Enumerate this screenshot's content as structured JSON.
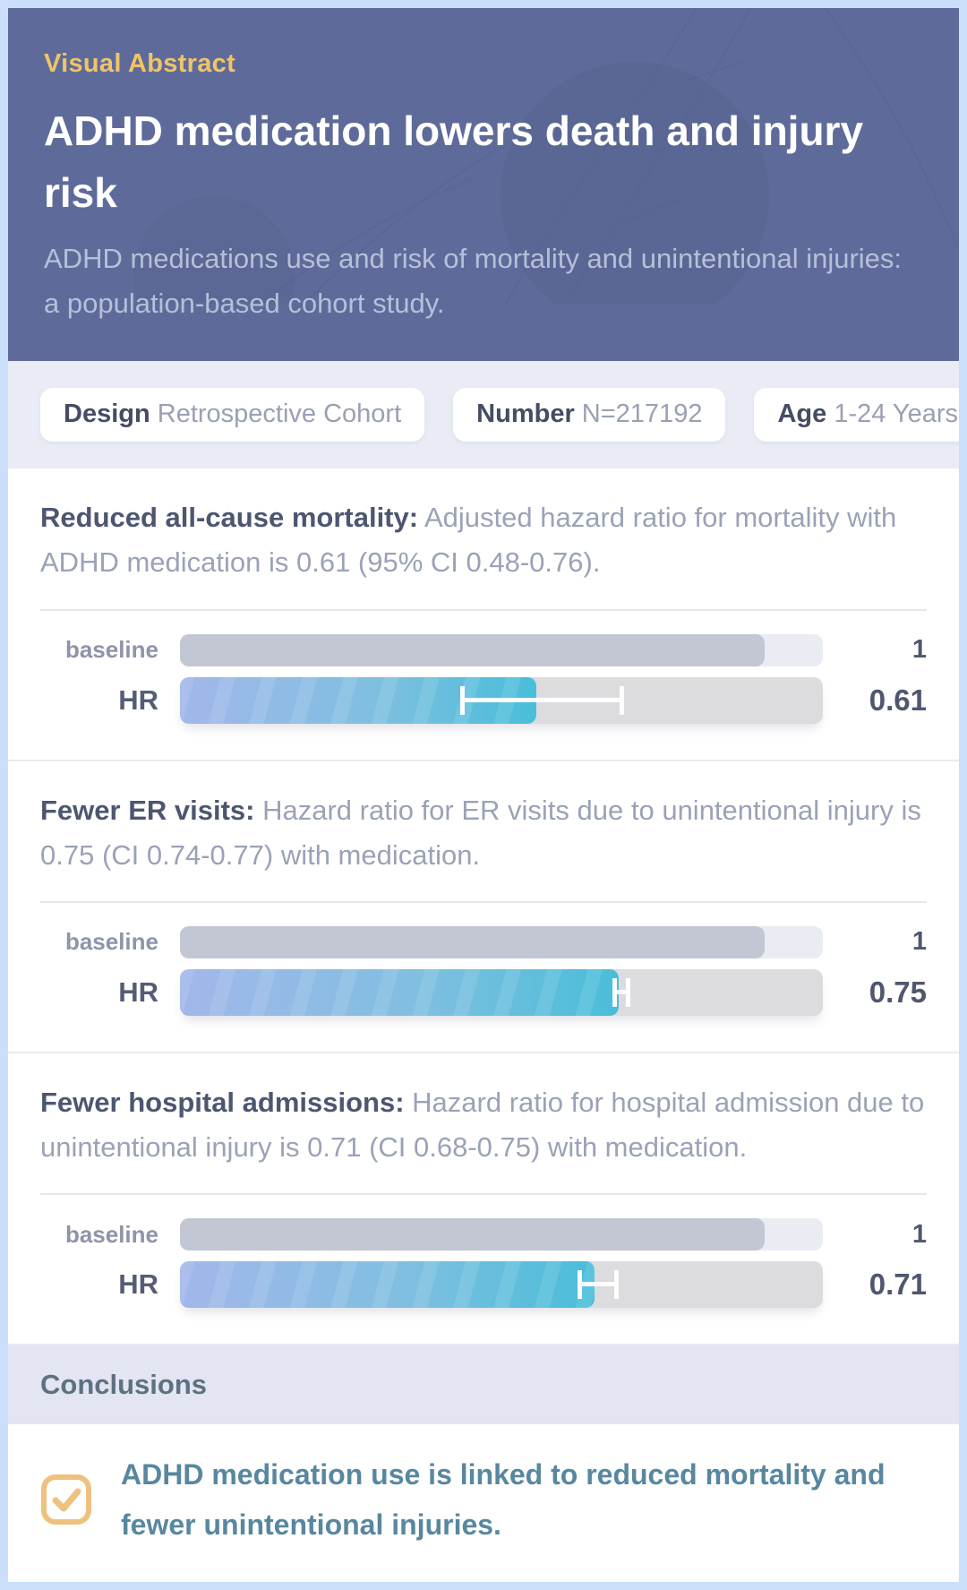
{
  "header": {
    "kicker": "Visual Abstract",
    "title": "ADHD medication lowers death and injury risk",
    "subtitle": "ADHD medications use and risk of mortality and unintentional injuries: a population-based cohort study."
  },
  "badges": [
    {
      "label": "Design",
      "value": "Retrospective Cohort"
    },
    {
      "label": "Number",
      "value": "N=217192"
    },
    {
      "label": "Age",
      "value": "1-24 Years"
    }
  ],
  "findings": [
    {
      "heading_bold": "Reduced all-cause mortality:",
      "heading_rest": " Adjusted hazard ratio for mortality with ADHD medication is 0.61 (95% CI 0.48-0.76).",
      "baseline_label": "baseline",
      "hr_label": "HR",
      "baseline_value": "1",
      "hr_value": "0.61"
    },
    {
      "heading_bold": "Fewer ER visits:",
      "heading_rest": " Hazard ratio for ER visits due to unintentional injury is 0.75 (CI 0.74-0.77) with medication.",
      "baseline_label": "baseline",
      "hr_label": "HR",
      "baseline_value": "1",
      "hr_value": "0.75"
    },
    {
      "heading_bold": "Fewer hospital admissions:",
      "heading_rest": " Hazard ratio for hospital admission due to unintentional injury is 0.71 (CI 0.68-0.75) with medication.",
      "baseline_label": "baseline",
      "hr_label": "HR",
      "baseline_value": "1",
      "hr_value": "0.71"
    }
  ],
  "chart_data": [
    {
      "type": "bar",
      "title": "Reduced all-cause mortality",
      "categories": [
        "baseline",
        "HR"
      ],
      "values": [
        1,
        0.61
      ],
      "ci": [
        0.48,
        0.76
      ],
      "ci_level": "95%",
      "xlim": [
        0,
        1.1
      ],
      "orientation": "horizontal",
      "grid": false,
      "legend": false
    },
    {
      "type": "bar",
      "title": "Fewer ER visits",
      "categories": [
        "baseline",
        "HR"
      ],
      "values": [
        1,
        0.75
      ],
      "ci": [
        0.74,
        0.77
      ],
      "xlim": [
        0,
        1.1
      ],
      "orientation": "horizontal",
      "grid": false,
      "legend": false
    },
    {
      "type": "bar",
      "title": "Fewer hospital admissions",
      "categories": [
        "baseline",
        "HR"
      ],
      "values": [
        1,
        0.71
      ],
      "ci": [
        0.68,
        0.75
      ],
      "xlim": [
        0,
        1.1
      ],
      "orientation": "horizontal",
      "grid": false,
      "legend": false
    }
  ],
  "conclusions": {
    "band_title": "Conclusions",
    "text": "ADHD medication use is linked to reduced mortality and fewer unintentional injuries."
  },
  "icons": {
    "conclusion": "checkbox-check-icon"
  },
  "colors": {
    "outer_border": "#cbdffa",
    "header_bg": "#5e6b9a",
    "kicker": "#f0c468",
    "subtitle": "#b7bfd9",
    "badges_bg": "#e9ebf5",
    "heading_bold": "#4d5671",
    "heading_rest": "#9aa2b8",
    "baseline_fill": "#c3c7d3",
    "baseline_track": "#eaecf3",
    "hr_track": "#dcdcdf",
    "hr_gradient_start": "#a2b7ea",
    "hr_gradient_end": "#49bed9",
    "value_text": "#4f566f",
    "conclusions_band_bg": "#e3e5f2",
    "conclusions_band_text": "#5e7182",
    "conclusion_text": "#5887a0",
    "checkbox": "#eec17e"
  }
}
